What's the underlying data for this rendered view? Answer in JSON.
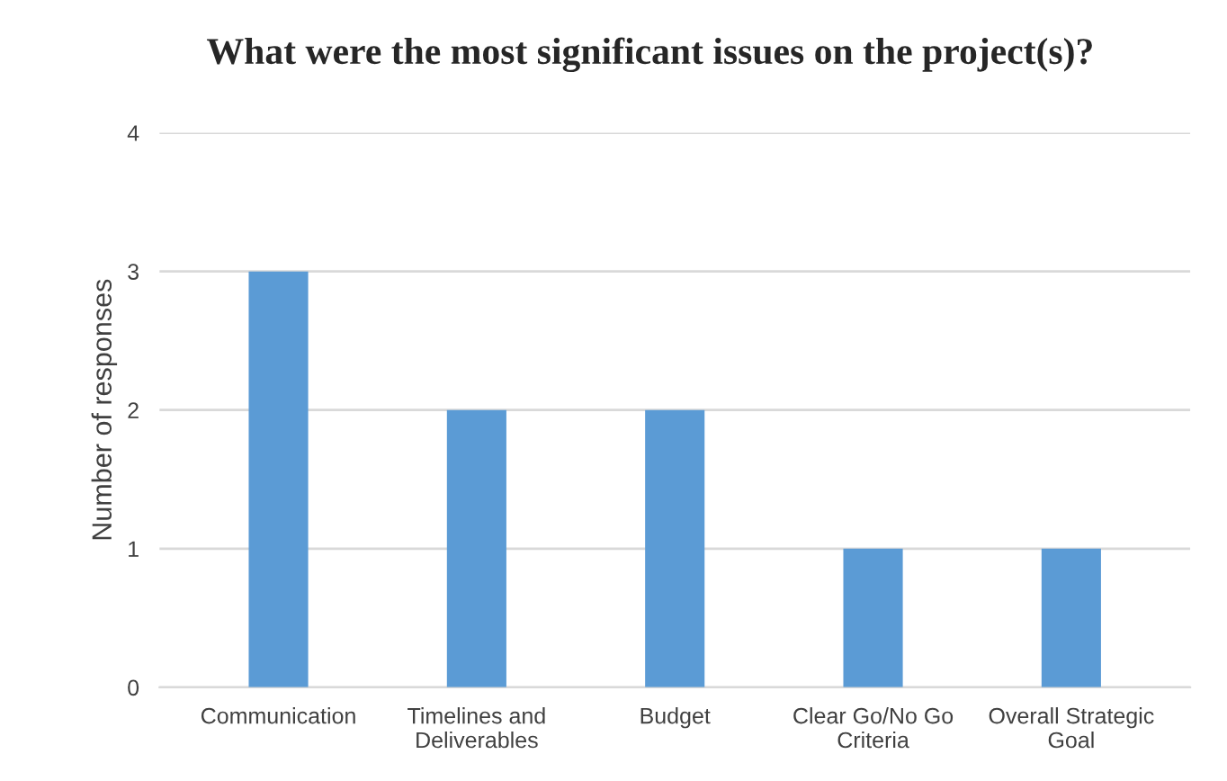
{
  "chart_data": {
    "type": "bar",
    "title": "What were the most significant issues on the project(s)?",
    "ylabel": "Number of responses",
    "categories": [
      "Communication",
      "Timelines and\nDeliverables",
      "Budget",
      "Clear Go/No Go\nCriteria",
      "Overall Strategic\nGoal"
    ],
    "values": [
      3,
      2,
      2,
      1,
      1
    ],
    "color": "#5b9bd5",
    "ylim": [
      0,
      4
    ],
    "yticks": [
      0,
      1,
      2,
      3,
      4
    ],
    "grid": "y"
  }
}
